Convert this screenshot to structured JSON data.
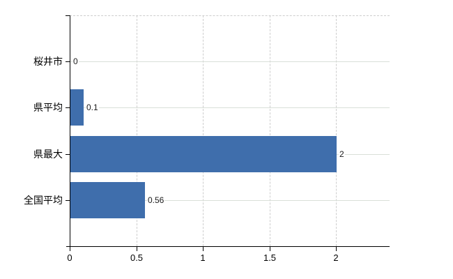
{
  "chart_data": {
    "type": "bar",
    "orientation": "horizontal",
    "title": "",
    "xlabel": "",
    "ylabel": "",
    "categories": [
      "桜井市",
      "県平均",
      "県最大",
      "全国平均"
    ],
    "values": [
      0,
      0.1,
      2,
      0.56
    ],
    "value_labels": [
      "0",
      "0.1",
      "2",
      "0.56"
    ],
    "x_ticks": [
      0,
      0.5,
      1,
      1.5,
      2
    ],
    "x_tick_labels": [
      "0",
      "0.5",
      "1",
      "1.5",
      "2"
    ],
    "xlim": [
      0,
      2.4
    ],
    "legend": "none",
    "grid": {
      "horizontal": "solid line at each category center",
      "vertical": "dashed line at each x tick",
      "top_border": "dashed"
    },
    "colors": {
      "bar": "#3f6eac",
      "horizontal_gridline": "#d9dfd8",
      "vertical_gridline": "#cdcdcd",
      "axis": "#000000",
      "text": "#000000",
      "background": "#ffffff"
    }
  }
}
